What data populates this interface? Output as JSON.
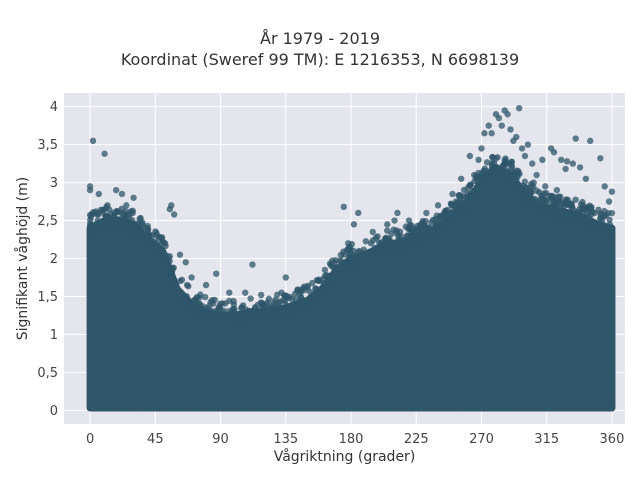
{
  "chart_data": {
    "type": "scatter",
    "title": "År 1979 - 2019",
    "subtitle": "Koordinat (Sweref 99 TM): E 1216353, N 6698139",
    "xlabel": "Vågriktning (grader)",
    "ylabel": "Signifikant våghöjd (m)",
    "xlim": [
      -18,
      369
    ],
    "ylim": [
      -0.18,
      4.18
    ],
    "x_ticks": [
      0,
      45,
      90,
      135,
      180,
      225,
      270,
      315,
      360
    ],
    "x_tick_labels": [
      "0",
      "45",
      "90",
      "135",
      "180",
      "225",
      "270",
      "315",
      "360"
    ],
    "y_ticks": [
      0,
      0.5,
      1,
      1.5,
      2,
      2.5,
      3,
      3.5,
      4
    ],
    "y_tick_labels": [
      "0",
      "0,5",
      "1",
      "1,5",
      "2",
      "2,5",
      "3",
      "3,5",
      "4"
    ],
    "grid": true,
    "marker_color": "#2f5669",
    "plot_background": "#e5e5ee",
    "upper_envelope": {
      "x": [
        0,
        10,
        20,
        30,
        40,
        50,
        55,
        60,
        70,
        80,
        90,
        100,
        110,
        120,
        135,
        150,
        160,
        170,
        180,
        190,
        200,
        210,
        220,
        230,
        240,
        250,
        260,
        270,
        280,
        290,
        300,
        310,
        320,
        330,
        340,
        350,
        360
      ],
      "y": [
        2.4,
        2.5,
        2.5,
        2.45,
        2.25,
        2.1,
        1.85,
        1.6,
        1.4,
        1.3,
        1.25,
        1.25,
        1.3,
        1.3,
        1.35,
        1.45,
        1.6,
        1.85,
        2.0,
        2.05,
        2.15,
        2.2,
        2.25,
        2.3,
        2.4,
        2.55,
        2.75,
        3.0,
        3.2,
        3.1,
        2.85,
        2.7,
        2.65,
        2.6,
        2.55,
        2.45,
        2.4
      ]
    },
    "outliers": [
      [
        2,
        3.55
      ],
      [
        10,
        3.38
      ],
      [
        0,
        2.95
      ],
      [
        0,
        2.9
      ],
      [
        6,
        2.85
      ],
      [
        18,
        2.9
      ],
      [
        22,
        2.85
      ],
      [
        30,
        2.8
      ],
      [
        12,
        2.7
      ],
      [
        25,
        2.7
      ],
      [
        4,
        2.62
      ],
      [
        28,
        2.62
      ],
      [
        55,
        2.65
      ],
      [
        56,
        2.7
      ],
      [
        58,
        2.58
      ],
      [
        40,
        2.35
      ],
      [
        46,
        2.3
      ],
      [
        50,
        2.2
      ],
      [
        62,
        2.05
      ],
      [
        66,
        1.95
      ],
      [
        70,
        1.75
      ],
      [
        80,
        1.65
      ],
      [
        87,
        1.8
      ],
      [
        96,
        1.55
      ],
      [
        107,
        1.55
      ],
      [
        112,
        1.92
      ],
      [
        118,
        1.52
      ],
      [
        132,
        1.55
      ],
      [
        135,
        1.75
      ],
      [
        143,
        1.58
      ],
      [
        150,
        1.62
      ],
      [
        158,
        1.72
      ],
      [
        162,
        1.85
      ],
      [
        168,
        1.88
      ],
      [
        175,
        2.05
      ],
      [
        178,
        2.2
      ],
      [
        175,
        2.68
      ],
      [
        185,
        2.6
      ],
      [
        182,
        2.45
      ],
      [
        195,
        2.35
      ],
      [
        205,
        2.45
      ],
      [
        210,
        2.5
      ],
      [
        212,
        2.6
      ],
      [
        220,
        2.5
      ],
      [
        232,
        2.6
      ],
      [
        240,
        2.7
      ],
      [
        250,
        2.85
      ],
      [
        256,
        3.05
      ],
      [
        262,
        3.35
      ],
      [
        265,
        3.1
      ],
      [
        270,
        3.45
      ],
      [
        268,
        3.3
      ],
      [
        272,
        3.65
      ],
      [
        275,
        3.75
      ],
      [
        277,
        3.65
      ],
      [
        280,
        3.9
      ],
      [
        282,
        3.85
      ],
      [
        284,
        3.75
      ],
      [
        286,
        3.95
      ],
      [
        288,
        3.9
      ],
      [
        290,
        3.7
      ],
      [
        292,
        3.55
      ],
      [
        294,
        3.6
      ],
      [
        296,
        3.98
      ],
      [
        298,
        3.45
      ],
      [
        300,
        3.35
      ],
      [
        302,
        3.5
      ],
      [
        305,
        3.25
      ],
      [
        308,
        3.1
      ],
      [
        312,
        3.3
      ],
      [
        318,
        3.45
      ],
      [
        320,
        3.4
      ],
      [
        325,
        3.3
      ],
      [
        329,
        3.28
      ],
      [
        333,
        3.25
      ],
      [
        338,
        3.2
      ],
      [
        328,
        3.18
      ],
      [
        335,
        3.58
      ],
      [
        345,
        3.55
      ],
      [
        352,
        3.32
      ],
      [
        355,
        2.95
      ],
      [
        360,
        2.88
      ],
      [
        348,
        2.6
      ],
      [
        358,
        2.75
      ],
      [
        342,
        3.05
      ],
      [
        322,
        2.9
      ],
      [
        314,
        2.95
      ],
      [
        306,
        3.0
      ]
    ]
  }
}
